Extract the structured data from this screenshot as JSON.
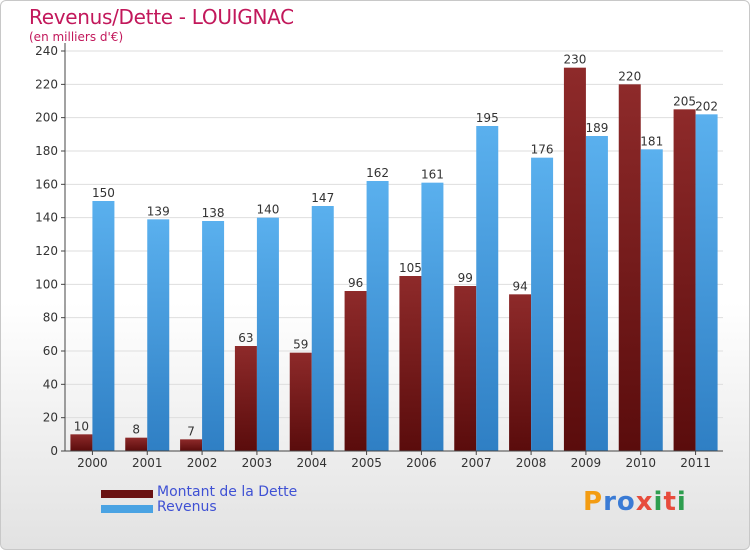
{
  "header": {
    "title": "Revenus/Dette - LOUIGNAC",
    "subtitle": "(en milliers d'€)"
  },
  "logo": {
    "text": "Proxiti",
    "letters": [
      {
        "ch": "P",
        "color": "#f39c12"
      },
      {
        "ch": "r",
        "color": "#3a7bd5"
      },
      {
        "ch": "o",
        "color": "#3a7bd5"
      },
      {
        "ch": "x",
        "color": "#e74c3c"
      },
      {
        "ch": "i",
        "color": "#2e9e4f"
      },
      {
        "ch": "t",
        "color": "#e74c3c"
      },
      {
        "ch": "i",
        "color": "#2e9e4f"
      }
    ]
  },
  "chart_data": {
    "type": "bar",
    "title": "Revenus/Dette - LOUIGNAC",
    "ylabel": "(en milliers d'€)",
    "categories": [
      "2000",
      "2001",
      "2002",
      "2003",
      "2004",
      "2005",
      "2006",
      "2007",
      "2008",
      "2009",
      "2010",
      "2011"
    ],
    "series": [
      {
        "name": "Montant de la Dette",
        "color": "#7b1c1c",
        "values": [
          10,
          8,
          7,
          63,
          59,
          96,
          105,
          99,
          94,
          230,
          220,
          205
        ]
      },
      {
        "name": "Revenus",
        "color": "#4aa3e3",
        "values": [
          150,
          139,
          138,
          140,
          147,
          162,
          161,
          195,
          176,
          189,
          181,
          202
        ]
      }
    ],
    "ylim": [
      0,
      240
    ],
    "yticks": [
      0,
      20,
      40,
      60,
      80,
      100,
      120,
      140,
      160,
      180,
      200,
      220,
      240
    ],
    "grid": true,
    "legend": "bottom-left"
  }
}
